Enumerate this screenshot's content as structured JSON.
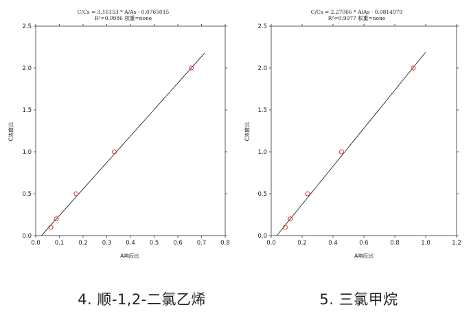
{
  "chart_data": [
    {
      "type": "scatter",
      "equation": "C/Cs = 3.16153 * A/As - 0.0765015",
      "r2_line": "R²=0.9986 权重=none",
      "caption": "4. 顺-1,2-二氯乙烯",
      "xlabel": "A响应比",
      "ylabel": "C浓度比",
      "xlim": [
        0.0,
        0.8
      ],
      "ylim": [
        0.0,
        2.5
      ],
      "xticks": [
        "0.0",
        "0.1",
        "0.2",
        "0.3",
        "0.4",
        "0.5",
        "0.6",
        "0.7",
        "0.8"
      ],
      "yticks": [
        "0.0",
        "0.5",
        "1.0",
        "1.5",
        "2.0",
        "2.5"
      ],
      "points": [
        {
          "x": 0.064,
          "y": 0.1
        },
        {
          "x": 0.087,
          "y": 0.2
        },
        {
          "x": 0.171,
          "y": 0.5
        },
        {
          "x": 0.332,
          "y": 1.0
        },
        {
          "x": 0.657,
          "y": 2.0
        }
      ],
      "fit": {
        "slope": 3.16153,
        "intercept": -0.0765015,
        "x_range": [
          0.024,
          0.713
        ]
      },
      "grid": false,
      "marker_color": "#e03030",
      "line_color": "#111111"
    },
    {
      "type": "scatter",
      "equation": "C/Cs = 2.27066 * A/As - 0.0814979",
      "r2_line": "R²=0.9977 权重=none",
      "caption": "5. 三氯甲烷",
      "xlabel": "A响应比",
      "ylabel": "C浓度比",
      "xlim": [
        0.0,
        1.2
      ],
      "ylim": [
        0.0,
        2.5
      ],
      "xticks": [
        "0.0",
        "0.2",
        "0.4",
        "0.6",
        "0.8",
        "1.0",
        "1.2"
      ],
      "yticks": [
        "0.0",
        "0.5",
        "1.0",
        "1.5",
        "2.0",
        "2.5"
      ],
      "points": [
        {
          "x": 0.091,
          "y": 0.1
        },
        {
          "x": 0.124,
          "y": 0.2
        },
        {
          "x": 0.236,
          "y": 0.5
        },
        {
          "x": 0.455,
          "y": 1.0
        },
        {
          "x": 0.92,
          "y": 2.0
        }
      ],
      "fit": {
        "slope": 2.27066,
        "intercept": -0.0814979,
        "x_range": [
          0.036,
          0.999
        ]
      },
      "grid": false,
      "marker_color": "#e03030",
      "line_color": "#111111"
    }
  ]
}
